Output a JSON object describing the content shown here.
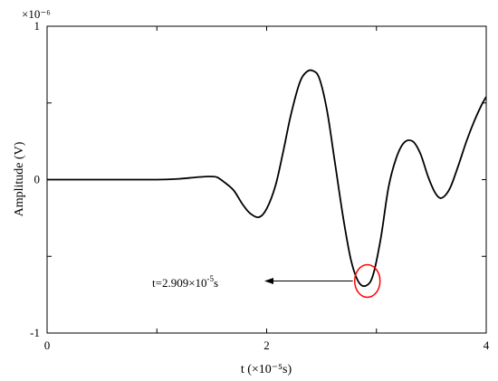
{
  "chart_data": {
    "type": "line",
    "title": "",
    "xlabel": "t (×10⁻⁵s)",
    "ylabel": "Amplitude (V)",
    "y_scale_label": "×10⁻⁶",
    "xlim": [
      0,
      4
    ],
    "ylim": [
      -1,
      1
    ],
    "x_ticks": [
      0,
      1,
      2,
      3,
      4
    ],
    "x_tick_labels": [
      "0",
      "",
      "2",
      "",
      "4"
    ],
    "y_ticks": [
      -1,
      -0.5,
      0,
      0.5,
      1
    ],
    "y_tick_labels": [
      "-1",
      "",
      "0",
      "",
      "1"
    ],
    "grid": false,
    "legend": "none",
    "series": [
      {
        "color": "#000000",
        "x": [
          0,
          0.5,
          1.0,
          1.2,
          1.35,
          1.45,
          1.5,
          1.55,
          1.62,
          1.7,
          1.78,
          1.85,
          1.93,
          2.0,
          2.08,
          2.15,
          2.22,
          2.3,
          2.36,
          2.42,
          2.48,
          2.55,
          2.62,
          2.7,
          2.77,
          2.84,
          2.91,
          2.97,
          3.04,
          3.11,
          3.18,
          3.25,
          3.33,
          3.4,
          3.47,
          3.53,
          3.58,
          3.63,
          3.68,
          3.75,
          3.82,
          3.89,
          3.96,
          4.0
        ],
        "y": [
          0,
          0,
          0,
          0.005,
          0.015,
          0.02,
          0.02,
          0.015,
          -0.02,
          -0.07,
          -0.16,
          -0.22,
          -0.245,
          -0.19,
          -0.04,
          0.18,
          0.42,
          0.63,
          0.7,
          0.71,
          0.66,
          0.45,
          0.12,
          -0.26,
          -0.53,
          -0.67,
          -0.69,
          -0.62,
          -0.38,
          -0.05,
          0.14,
          0.24,
          0.25,
          0.17,
          0.02,
          -0.08,
          -0.12,
          -0.1,
          -0.04,
          0.1,
          0.25,
          0.38,
          0.49,
          0.54
        ]
      }
    ],
    "annotations": [
      {
        "text_prefix": "t=2.909×10",
        "text_exp": "-5",
        "text_suffix": "s",
        "x": 2.909,
        "y": -0.69,
        "marker": "ellipse",
        "marker_color": "#ff0000"
      }
    ]
  }
}
